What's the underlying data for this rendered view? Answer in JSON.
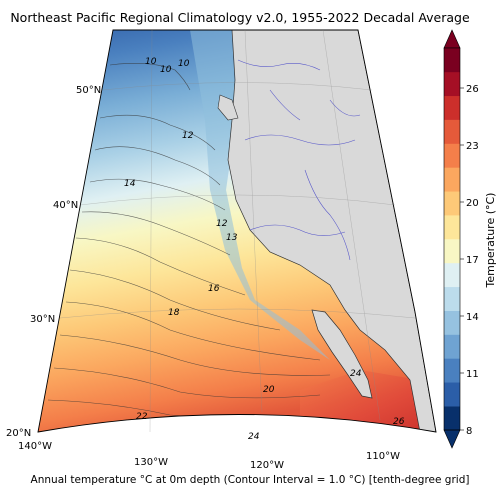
{
  "title": "Northeast Pacific Regional Climatology v2.0, 1955-2022 Decadal Average",
  "caption": "Annual temperature °C at 0m depth (Contour Interval = 1.0 °C) [tenth-degree grid]",
  "map": {
    "lat_labels": [
      "50°N",
      "40°N",
      "30°N",
      "20°N"
    ],
    "lon_labels": [
      "140°W",
      "130°W",
      "120°W",
      "110°W"
    ],
    "contour_labels": [
      "10",
      "10",
      "10",
      "12",
      "14",
      "12",
      "13",
      "16",
      "18",
      "20",
      "22",
      "24",
      "24",
      "26"
    ],
    "land_color": "#d9d9d9",
    "river_color": "#4b4bc8"
  },
  "colorbar": {
    "label": "Temperature (°C)",
    "ticks": [
      "26",
      "23",
      "20",
      "17",
      "14",
      "11",
      "8"
    ],
    "colors": [
      "#08306b",
      "#2b5ea8",
      "#4a80bf",
      "#6fa3d2",
      "#96c2e0",
      "#bcdcec",
      "#dff0f3",
      "#f8f7c4",
      "#fde69a",
      "#fdc978",
      "#fba75f",
      "#f47f4a",
      "#e55a3a",
      "#cc2f2b",
      "#a50f25",
      "#7a0020"
    ]
  }
}
